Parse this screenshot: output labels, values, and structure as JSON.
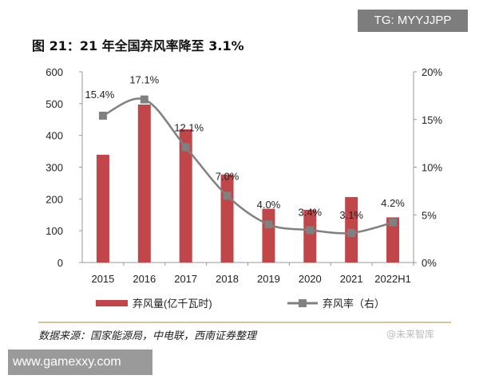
{
  "header": {
    "tg_label": "TG: MYYJJPP",
    "title": "图 21：21 年全国弃风率降至 3.1%"
  },
  "chart_data": {
    "type": "bar+line",
    "title": "图 21：21 年全国弃风率降至 3.1%",
    "categories": [
      "2015",
      "2016",
      "2017",
      "2018",
      "2019",
      "2020",
      "2021",
      "2022H1"
    ],
    "series": [
      {
        "name": "弃风量(亿千瓦时)",
        "type": "bar",
        "axis": "left",
        "color": "#c0464a",
        "values": [
          339,
          497,
          419,
          277,
          169,
          166,
          206,
          142
        ]
      },
      {
        "name": "弃风率（右）",
        "type": "line",
        "axis": "right",
        "color": "#808080",
        "values": [
          15.4,
          17.1,
          12.1,
          7.0,
          4.0,
          3.4,
          3.1,
          4.2
        ],
        "labels": [
          "15.4%",
          "17.1%",
          "12.1%",
          "7.0%",
          "4.0%",
          "3.4%",
          "3.1%",
          "4.2%"
        ]
      }
    ],
    "left_axis": {
      "ylim": [
        0,
        600
      ],
      "ticks": [
        "0",
        "100",
        "200",
        "300",
        "400",
        "500",
        "600"
      ]
    },
    "right_axis": {
      "ylim": [
        0,
        20
      ],
      "ticks": [
        "0%",
        "5%",
        "10%",
        "15%",
        "20%"
      ]
    },
    "legend": "bottom",
    "grid": false
  },
  "footer": {
    "source": "数据来源：国家能源局，中电联，西南证券整理",
    "watermark": "@未来智库",
    "site": "www.gamexxy.com"
  }
}
